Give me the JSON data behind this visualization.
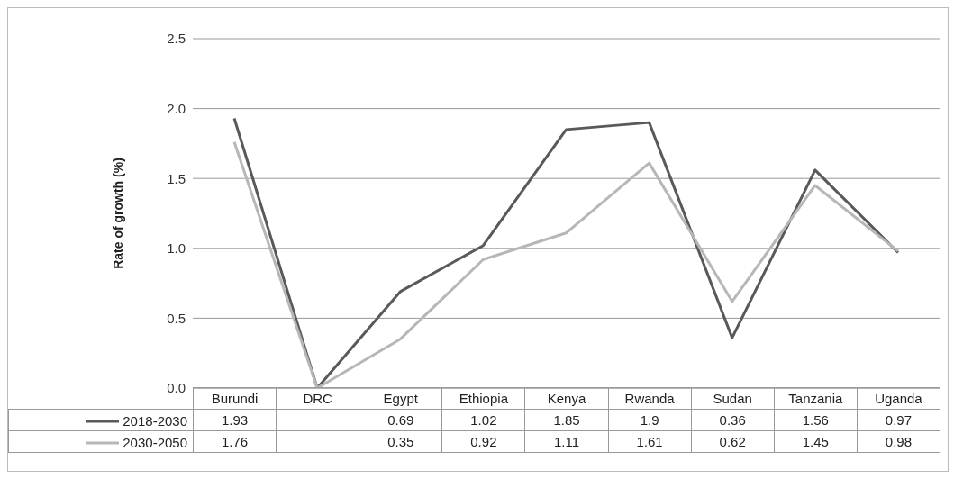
{
  "chart_data": {
    "type": "line",
    "ylabel": "Rate of growth (%)",
    "categories": [
      "Burundi",
      "DRC",
      "Egypt",
      "Ethiopia",
      "Kenya",
      "Rwanda",
      "Sudan",
      "Tanzania",
      "Uganda"
    ],
    "series": [
      {
        "name": "2018-2030",
        "color": "#595959",
        "values": [
          1.93,
          0,
          0.69,
          1.02,
          1.85,
          1.9,
          0.36,
          1.56,
          0.97
        ],
        "value_labels": [
          "1.93",
          null,
          "0.69",
          "1.02",
          "1.85",
          "1.9",
          "0.36",
          "1.56",
          "0.97"
        ]
      },
      {
        "name": "2030-2050",
        "color": "#b7b7b7",
        "values": [
          1.76,
          0,
          0.35,
          0.92,
          1.11,
          1.61,
          0.62,
          1.45,
          0.98
        ],
        "value_labels": [
          "1.76",
          null,
          "0.35",
          "0.92",
          "1.11",
          "1.61",
          "0.62",
          "1.45",
          "0.98"
        ]
      }
    ],
    "ylim": [
      0,
      2.5
    ],
    "yticks": [
      {
        "value": 0,
        "label": "0.0"
      },
      {
        "value": 0.5,
        "label": "0.5"
      },
      {
        "value": 1,
        "label": "1.0"
      },
      {
        "value": 1.5,
        "label": "1.5"
      },
      {
        "value": 2,
        "label": "2.0"
      },
      {
        "value": 2.5,
        "label": "2.5"
      }
    ],
    "grid": "y",
    "marker": "none",
    "line_style": "solid",
    "legend": "bottom"
  }
}
